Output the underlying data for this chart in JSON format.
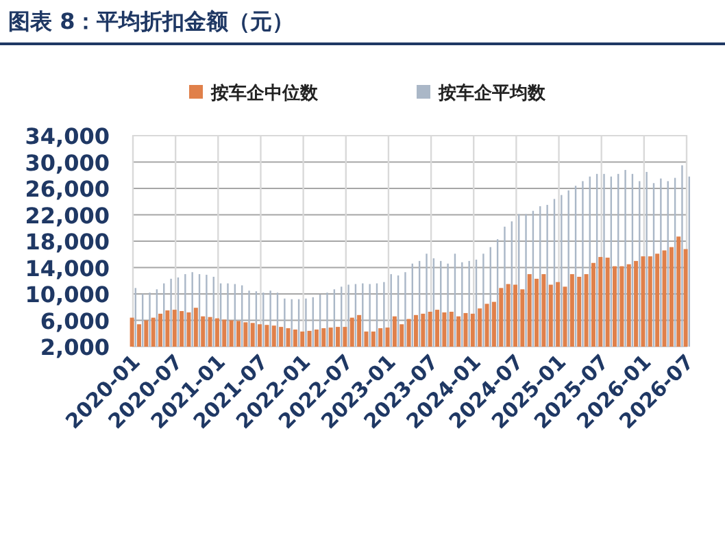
{
  "chart_data": {
    "type": "bar",
    "title": "图表 8：平均折扣金额（元）",
    "x": [
      "2020-01",
      "2020-02",
      "2020-03",
      "2020-04",
      "2020-05",
      "2020-06",
      "2020-07",
      "2020-08",
      "2020-09",
      "2020-10",
      "2020-11",
      "2020-12",
      "2021-01",
      "2021-02",
      "2021-03",
      "2021-04",
      "2021-05",
      "2021-06",
      "2021-07",
      "2021-08",
      "2021-09",
      "2021-10",
      "2021-11",
      "2021-12",
      "2022-01",
      "2022-02",
      "2022-03",
      "2022-04",
      "2022-05",
      "2022-06",
      "2022-07",
      "2022-08",
      "2022-09",
      "2022-10",
      "2022-11",
      "2022-12",
      "2023-01",
      "2023-02",
      "2023-03",
      "2023-04",
      "2023-05",
      "2023-06",
      "2023-07",
      "2023-08",
      "2023-09",
      "2023-10",
      "2023-11",
      "2023-12",
      "2024-01",
      "2024-02",
      "2024-03",
      "2024-04",
      "2024-05",
      "2024-06",
      "2024-07",
      "2024-08",
      "2024-09",
      "2024-10",
      "2024-11",
      "2024-12",
      "2025-01",
      "2025-02",
      "2025-03",
      "2025-04",
      "2025-05",
      "2025-06",
      "2025-07",
      "2025-08",
      "2025-09",
      "2025-10",
      "2025-11",
      "2025-12",
      "2026-01",
      "2026-02",
      "2026-03",
      "2026-04",
      "2026-05",
      "2026-06",
      "2026-07"
    ],
    "series": [
      {
        "name": "按车企平均数",
        "color": "#aab7c7",
        "values": [
          10900,
          10000,
          10200,
          10700,
          11600,
          12300,
          12500,
          13000,
          13300,
          13000,
          12900,
          12600,
          11600,
          11600,
          11500,
          11300,
          10500,
          10400,
          10200,
          10500,
          10200,
          9300,
          9200,
          9200,
          9300,
          9500,
          9900,
          10200,
          10700,
          11100,
          11400,
          11500,
          11600,
          11500,
          11600,
          11800,
          13000,
          12800,
          13300,
          14600,
          15000,
          16100,
          15400,
          15000,
          14600,
          16100,
          14800,
          15000,
          15200,
          16100,
          17100,
          18300,
          20200,
          21000,
          22100,
          22100,
          22600,
          23300,
          23500,
          24400,
          25000,
          25700,
          26400,
          27100,
          27800,
          28200,
          28200,
          27800,
          28200,
          28800,
          28200,
          27100,
          28500,
          26800,
          27500,
          27100,
          27600,
          29500,
          27800
        ]
      },
      {
        "name": "按车企中位数",
        "color": "#e0804a",
        "values": [
          6400,
          5400,
          6000,
          6400,
          7000,
          7500,
          7600,
          7400,
          7200,
          7900,
          6600,
          6500,
          6300,
          6100,
          6000,
          5900,
          5700,
          5600,
          5400,
          5300,
          5200,
          5000,
          4800,
          4600,
          4300,
          4400,
          4600,
          4800,
          4900,
          5000,
          5000,
          6400,
          6800,
          4300,
          4300,
          4800,
          4900,
          6600,
          5400,
          6200,
          6800,
          7000,
          7300,
          7600,
          7200,
          7300,
          6600,
          7100,
          7000,
          7800,
          8500,
          8800,
          10900,
          11500,
          11400,
          10700,
          13000,
          12300,
          13000,
          11400,
          11800,
          11100,
          13000,
          12600,
          13000,
          14700,
          15600,
          15500,
          14200,
          14200,
          14500,
          15000,
          15700,
          15700,
          16100,
          16600,
          17100,
          18700,
          16800
        ]
      }
    ],
    "xlim": [
      "2020-01",
      "2026-07"
    ],
    "xticks": [
      "2020-01",
      "2020-07",
      "2021-01",
      "2021-07",
      "2022-01",
      "2022-07",
      "2023-01",
      "2023-07",
      "2024-01",
      "2024-07",
      "2025-01",
      "2025-07",
      "2026-01",
      "2026-07"
    ],
    "ylim": [
      2000,
      34000
    ],
    "yticks": [
      {
        "value": 2000,
        "label": "2,000"
      },
      {
        "value": 6000,
        "label": "6,000"
      },
      {
        "value": 10000,
        "label": "10,000"
      },
      {
        "value": 14000,
        "label": "14,000"
      },
      {
        "value": 18000,
        "label": "18,000"
      },
      {
        "value": 22000,
        "label": "22,000"
      },
      {
        "value": 26000,
        "label": "26,000"
      },
      {
        "value": 30000,
        "label": "30,000"
      },
      {
        "value": 34000,
        "label": "34,000"
      }
    ],
    "grid": true,
    "legend": "top"
  }
}
